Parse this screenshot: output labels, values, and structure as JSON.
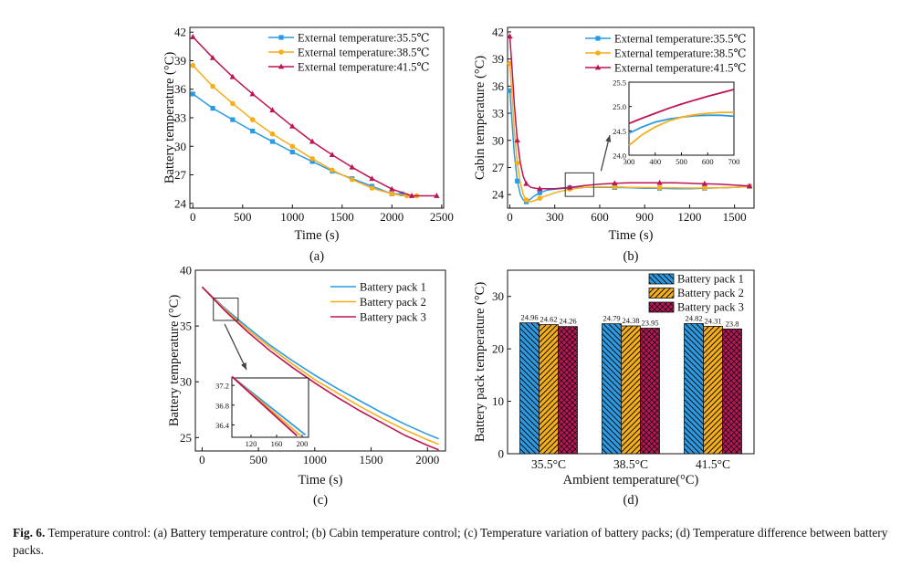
{
  "caption": {
    "label": "Fig. 6.",
    "text": "Temperature control: (a) Battery temperature control; (b) Cabin temperature control; (c) Temperature variation of battery packs; (d) Temperature difference between battery packs."
  },
  "colors": {
    "blue": "#2a9be3",
    "orange": "#f6ae1a",
    "red": "#bd1456"
  },
  "chart_data": [
    {
      "id": "a",
      "type": "line",
      "panel_label": "(a)",
      "xlabel": "Time (s)",
      "ylabel": "Battery temperature (°C)",
      "xlim": [
        -30,
        2520
      ],
      "ylim": [
        23.5,
        42.5
      ],
      "xticks": [
        0,
        500,
        1000,
        1500,
        2000,
        2500
      ],
      "yticks": [
        24,
        27,
        30,
        33,
        36,
        39,
        42
      ],
      "legend_position": "top-right",
      "series": [
        {
          "name": "External temperature:35.5℃",
          "color": "#2a9be3",
          "marker": "square",
          "x": [
            0,
            200,
            400,
            600,
            800,
            1000,
            1200,
            1400,
            1600,
            1800,
            2000,
            2100
          ],
          "y": [
            35.5,
            34.0,
            32.8,
            31.6,
            30.5,
            29.4,
            28.4,
            27.4,
            26.6,
            25.8,
            25.0,
            25.0
          ]
        },
        {
          "name": "External temperature:38.5℃",
          "color": "#f6ae1a",
          "marker": "circle",
          "x": [
            0,
            200,
            400,
            600,
            800,
            1000,
            1200,
            1400,
            1600,
            1800,
            2000,
            2150,
            2250
          ],
          "y": [
            38.5,
            36.3,
            34.5,
            32.8,
            31.3,
            30.0,
            28.7,
            27.5,
            26.5,
            25.6,
            25.0,
            24.8,
            24.8
          ]
        },
        {
          "name": "External temperature:41.5℃",
          "color": "#bd1456",
          "marker": "triangle",
          "x": [
            0,
            200,
            400,
            600,
            800,
            1000,
            1200,
            1400,
            1600,
            1800,
            2000,
            2200,
            2450
          ],
          "y": [
            41.5,
            39.3,
            37.3,
            35.5,
            33.8,
            32.1,
            30.5,
            29.1,
            27.8,
            26.6,
            25.5,
            24.8,
            24.8
          ]
        }
      ]
    },
    {
      "id": "b",
      "type": "line",
      "panel_label": "(b)",
      "xlabel": "Time (s)",
      "ylabel": "Cabin temperature (°C)",
      "xlim": [
        -15,
        1630
      ],
      "ylim": [
        22.5,
        42.5
      ],
      "xticks": [
        0,
        300,
        600,
        900,
        1200,
        1500
      ],
      "yticks": [
        24,
        27,
        30,
        33,
        36,
        39,
        42
      ],
      "legend_position": "top-right",
      "series": [
        {
          "name": "External temperature:35.5℃",
          "color": "#2a9be3",
          "marker": "square",
          "x": [
            0,
            15,
            30,
            50,
            70,
            90,
            110,
            130,
            160,
            200,
            250,
            300,
            400,
            500,
            600,
            700,
            800,
            900,
            1000,
            1100,
            1200,
            1300,
            1400,
            1500,
            1600
          ],
          "y": [
            35.5,
            32.0,
            28.5,
            25.5,
            24.0,
            23.4,
            23.2,
            23.4,
            23.8,
            24.2,
            24.5,
            24.6,
            24.75,
            24.8,
            24.8,
            24.78,
            24.76,
            24.7,
            24.7,
            24.65,
            24.65,
            24.7,
            24.75,
            24.8,
            24.9
          ]
        },
        {
          "name": "External temperature:38.5℃",
          "color": "#f6ae1a",
          "marker": "circle",
          "x": [
            0,
            15,
            30,
            50,
            70,
            90,
            110,
            130,
            160,
            200,
            250,
            300,
            400,
            500,
            600,
            700,
            800,
            900,
            1000,
            1100,
            1200,
            1300,
            1400,
            1500,
            1600
          ],
          "y": [
            38.5,
            35.0,
            31.0,
            27.5,
            25.3,
            24.0,
            23.4,
            23.2,
            23.3,
            23.6,
            23.9,
            24.2,
            24.6,
            24.8,
            24.85,
            24.85,
            24.8,
            24.78,
            24.76,
            24.74,
            24.72,
            24.73,
            24.75,
            24.8,
            24.9
          ]
        },
        {
          "name": "External temperature:41.5℃",
          "color": "#bd1456",
          "marker": "triangle",
          "x": [
            0,
            15,
            30,
            50,
            70,
            90,
            110,
            140,
            170,
            200,
            250,
            300,
            400,
            500,
            600,
            700,
            800,
            900,
            1000,
            1100,
            1200,
            1300,
            1400,
            1500,
            1600
          ],
          "y": [
            41.5,
            38.0,
            34.0,
            30.0,
            27.5,
            26.0,
            25.2,
            24.8,
            24.7,
            24.65,
            24.65,
            24.65,
            24.8,
            25.0,
            25.15,
            25.25,
            25.3,
            25.3,
            25.3,
            25.3,
            25.25,
            25.2,
            25.15,
            25.05,
            24.95
          ]
        }
      ],
      "highlight_box": {
        "x": [
          370,
          560
        ],
        "y": [
          23.8,
          26.4
        ]
      },
      "inset": {
        "xlim": [
          300,
          700
        ],
        "ylim": [
          24.0,
          25.5
        ],
        "xticks": [
          300,
          400,
          500,
          600,
          700
        ],
        "yticks": [
          24.0,
          24.5,
          25.0,
          25.5
        ],
        "series": [
          {
            "color": "#2a9be3",
            "x": [
              300,
              350,
              400,
              450,
              500,
              550,
              600,
              650,
              700
            ],
            "y": [
              24.45,
              24.58,
              24.68,
              24.74,
              24.78,
              24.81,
              24.82,
              24.82,
              24.8
            ]
          },
          {
            "color": "#f6ae1a",
            "x": [
              300,
              350,
              400,
              450,
              500,
              550,
              600,
              650,
              700
            ],
            "y": [
              24.2,
              24.42,
              24.58,
              24.7,
              24.78,
              24.83,
              24.86,
              24.88,
              24.88
            ]
          },
          {
            "color": "#bd1456",
            "x": [
              300,
              350,
              400,
              450,
              500,
              550,
              600,
              650,
              700
            ],
            "y": [
              24.65,
              24.76,
              24.86,
              24.96,
              25.05,
              25.13,
              25.21,
              25.28,
              25.35
            ]
          }
        ]
      }
    },
    {
      "id": "c",
      "type": "line",
      "panel_label": "(c)",
      "xlabel": "Time (s)",
      "ylabel": "Battery temperature (°C)",
      "xlim": [
        -60,
        2160
      ],
      "ylim": [
        23.8,
        40.0
      ],
      "xticks": [
        0,
        500,
        1000,
        1500,
        2000
      ],
      "yticks": [
        25,
        30,
        35,
        40
      ],
      "legend_position": "top-right",
      "series": [
        {
          "name": "Battery pack 1",
          "color": "#2a9be3",
          "x": [
            0,
            200,
            400,
            600,
            800,
            1000,
            1200,
            1400,
            1600,
            1800,
            2000,
            2100
          ],
          "y": [
            38.5,
            36.6,
            34.9,
            33.3,
            31.9,
            30.6,
            29.4,
            28.3,
            27.2,
            26.2,
            25.3,
            24.9
          ]
        },
        {
          "name": "Battery pack 2",
          "color": "#f6ae1a",
          "x": [
            0,
            200,
            400,
            600,
            800,
            1000,
            1200,
            1400,
            1600,
            1800,
            2000,
            2100
          ],
          "y": [
            38.5,
            36.5,
            34.7,
            33.1,
            31.6,
            30.2,
            29.0,
            27.8,
            26.7,
            25.7,
            24.8,
            24.4
          ]
        },
        {
          "name": "Battery pack 3",
          "color": "#bd1456",
          "x": [
            0,
            200,
            400,
            600,
            800,
            1000,
            1200,
            1400,
            1600,
            1800,
            2000,
            2100
          ],
          "y": [
            38.5,
            36.4,
            34.5,
            32.8,
            31.3,
            29.9,
            28.6,
            27.4,
            26.3,
            25.2,
            24.3,
            23.9
          ]
        }
      ],
      "highlight_box": {
        "x": [
          100,
          320
        ],
        "y": [
          35.5,
          37.5
        ]
      },
      "inset": {
        "xlim": [
          90,
          210
        ],
        "ylim": [
          36.15,
          37.35
        ],
        "xticks": [
          120,
          160,
          200
        ],
        "yticks": [
          36.4,
          36.8,
          37.2
        ],
        "series": [
          {
            "color": "#2a9be3",
            "x": [
              90,
              205
            ],
            "y": [
              37.38,
              36.2
            ]
          },
          {
            "color": "#f6ae1a",
            "x": [
              90,
              198
            ],
            "y": [
              37.38,
              36.18
            ]
          },
          {
            "color": "#bd1456",
            "x": [
              90,
              192
            ],
            "y": [
              37.38,
              36.18
            ]
          }
        ]
      }
    },
    {
      "id": "d",
      "type": "bar",
      "panel_label": "(d)",
      "xlabel": "Ambient temperature(°C)",
      "ylabel": "Battery pack temperature (°C)",
      "ylim": [
        0,
        35
      ],
      "yticks": [
        0,
        10,
        20,
        30
      ],
      "categories": [
        "35.5°C",
        "38.5°C",
        "41.5°C"
      ],
      "legend_position": "top-right",
      "series": [
        {
          "name": "Battery pack 1",
          "color": "#2a9be3",
          "pattern": "hatch-back",
          "values": [
            24.96,
            24.79,
            24.82
          ]
        },
        {
          "name": "Battery pack 2",
          "color": "#f6ae1a",
          "pattern": "hatch-forward",
          "values": [
            24.62,
            24.38,
            24.31
          ]
        },
        {
          "name": "Battery pack 3",
          "color": "#bd1456",
          "pattern": "crosshatch",
          "values": [
            24.26,
            23.95,
            23.8
          ]
        }
      ],
      "value_labels": [
        [
          "24.96",
          "24.62",
          "24.26"
        ],
        [
          "24.79",
          "24.38",
          "23.95"
        ],
        [
          "24.82",
          "24.31",
          "23.8"
        ]
      ]
    }
  ]
}
